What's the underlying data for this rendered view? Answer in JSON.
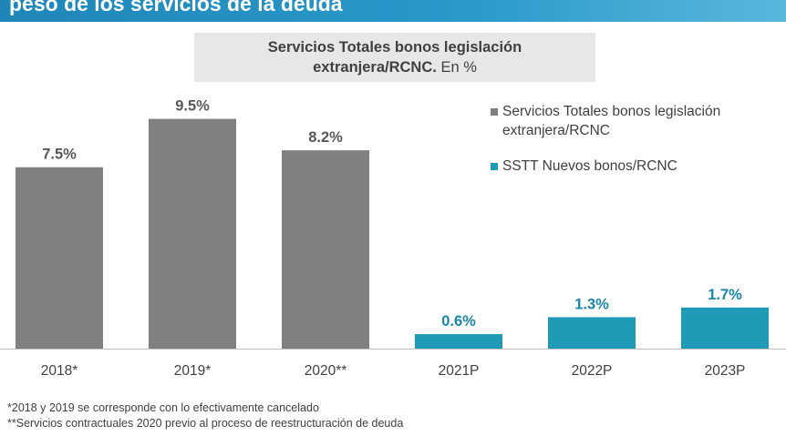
{
  "header": {
    "title": "peso de los servicios de la deuda"
  },
  "chart_title": {
    "strong": "Servicios Totales bonos legislación extranjera/RCNC.",
    "rest": "En %"
  },
  "chart_data": {
    "type": "bar",
    "categories": [
      "2018*",
      "2019*",
      "2020**",
      "2021P",
      "2022P",
      "2023P"
    ],
    "series": [
      {
        "name": "Servicios Totales bonos legislación extranjera/RCNC",
        "color": "#808080",
        "values": [
          7.5,
          9.5,
          8.2,
          null,
          null,
          null
        ],
        "labels": [
          "7.5%",
          "9.5%",
          "8.2%",
          "",
          "",
          ""
        ]
      },
      {
        "name": "SSTT Nuevos bonos/RCNC",
        "color": "#1f9bb8",
        "values": [
          null,
          null,
          null,
          0.6,
          1.3,
          1.7
        ],
        "labels": [
          "",
          "",
          "",
          "0.6%",
          "1.3%",
          "1.7%"
        ]
      }
    ],
    "ylim": [
      0,
      10.2
    ],
    "legend_position": "right"
  },
  "footnotes": [
    "*2018 y 2019 se corresponde con lo efectivamente cancelado",
    "**Servicios contractuales 2020 previo al proceso de reestructuración de deuda"
  ]
}
